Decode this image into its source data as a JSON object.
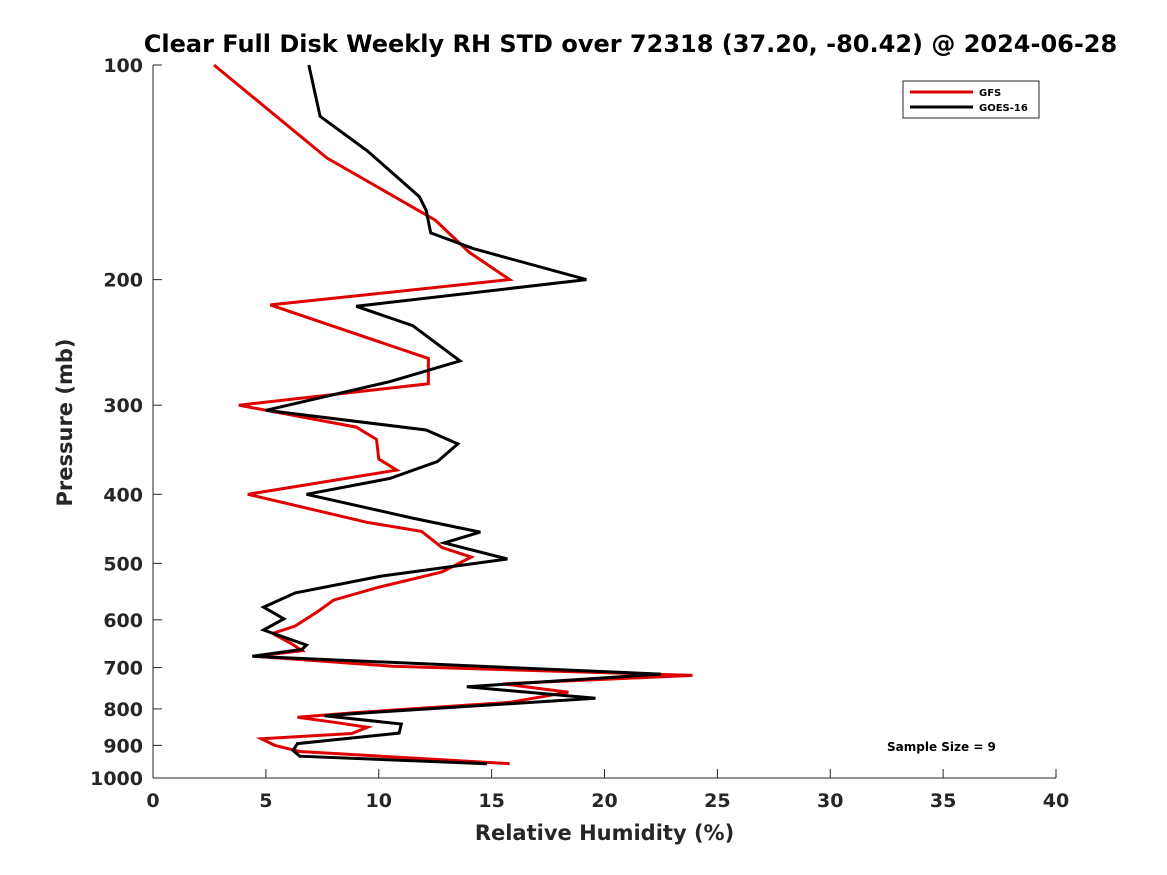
{
  "chart_data": {
    "type": "line",
    "title": "Clear Full Disk Weekly RH STD over 72318 (37.20, -80.42) @ 2024-06-28",
    "xlabel": "Relative Humidity (%)",
    "ylabel": "Pressure (mb)",
    "xlim": [
      0,
      40
    ],
    "ylim": [
      100,
      1000
    ],
    "y_scale": "log",
    "y_reversed": true,
    "grid": false,
    "legend_position": "top-right",
    "x_ticks": [
      0,
      5,
      10,
      15,
      20,
      25,
      30,
      35,
      40
    ],
    "y_ticks": [
      100,
      200,
      300,
      400,
      500,
      600,
      700,
      800,
      900,
      1000
    ],
    "annotation": "Sample Size = 9",
    "series": [
      {
        "name": "GFS",
        "color": "#e00000",
        "points": [
          [
            2.7,
            100
          ],
          [
            7.7,
            135
          ],
          [
            12.5,
            165
          ],
          [
            14.0,
            183
          ],
          [
            15.8,
            200
          ],
          [
            5.2,
            217
          ],
          [
            12.2,
            258
          ],
          [
            12.2,
            280
          ],
          [
            3.8,
            300
          ],
          [
            9.0,
            322
          ],
          [
            9.9,
            335
          ],
          [
            10.0,
            357
          ],
          [
            10.8,
            370
          ],
          [
            4.2,
            400
          ],
          [
            9.5,
            438
          ],
          [
            11.9,
            451
          ],
          [
            12.8,
            475
          ],
          [
            14.1,
            490
          ],
          [
            12.8,
            514
          ],
          [
            10.0,
            540
          ],
          [
            8.0,
            563
          ],
          [
            7.3,
            584
          ],
          [
            6.3,
            612
          ],
          [
            5.3,
            627
          ],
          [
            6.2,
            650
          ],
          [
            6.6,
            663
          ],
          [
            4.5,
            675
          ],
          [
            10.6,
            697
          ],
          [
            23.9,
            718
          ],
          [
            15.5,
            738
          ],
          [
            18.4,
            758
          ],
          [
            15.8,
            783
          ],
          [
            8.9,
            810
          ],
          [
            6.4,
            822
          ],
          [
            8.0,
            835
          ],
          [
            9.5,
            849
          ],
          [
            8.8,
            866
          ],
          [
            4.8,
            881
          ],
          [
            5.4,
            900
          ],
          [
            6.5,
            918
          ],
          [
            15.8,
            955
          ]
        ]
      },
      {
        "name": "GOES-16",
        "color": "#000000",
        "points": [
          [
            6.9,
            100
          ],
          [
            7.4,
            118
          ],
          [
            9.5,
            132
          ],
          [
            11.8,
            153
          ],
          [
            12.1,
            160
          ],
          [
            12.3,
            172
          ],
          [
            14.2,
            181
          ],
          [
            19.2,
            200
          ],
          [
            9.0,
            218
          ],
          [
            11.5,
            232
          ],
          [
            13.6,
            260
          ],
          [
            10.5,
            278
          ],
          [
            5.0,
            305
          ],
          [
            12.1,
            325
          ],
          [
            13.5,
            340
          ],
          [
            12.6,
            360
          ],
          [
            10.5,
            380
          ],
          [
            6.8,
            400
          ],
          [
            11.5,
            432
          ],
          [
            14.5,
            452
          ],
          [
            12.9,
            468
          ],
          [
            15.7,
            493
          ],
          [
            10.1,
            521
          ],
          [
            6.3,
            550
          ],
          [
            4.9,
            576
          ],
          [
            5.8,
            598
          ],
          [
            4.9,
            620
          ],
          [
            6.8,
            651
          ],
          [
            6.6,
            660
          ],
          [
            4.4,
            675
          ],
          [
            22.5,
            715
          ],
          [
            13.9,
            745
          ],
          [
            19.6,
            773
          ],
          [
            9.5,
            810
          ],
          [
            7.6,
            818
          ],
          [
            11.0,
            840
          ],
          [
            10.9,
            865
          ],
          [
            6.4,
            895
          ],
          [
            6.2,
            915
          ],
          [
            6.5,
            932
          ],
          [
            14.8,
            955
          ]
        ]
      }
    ]
  }
}
